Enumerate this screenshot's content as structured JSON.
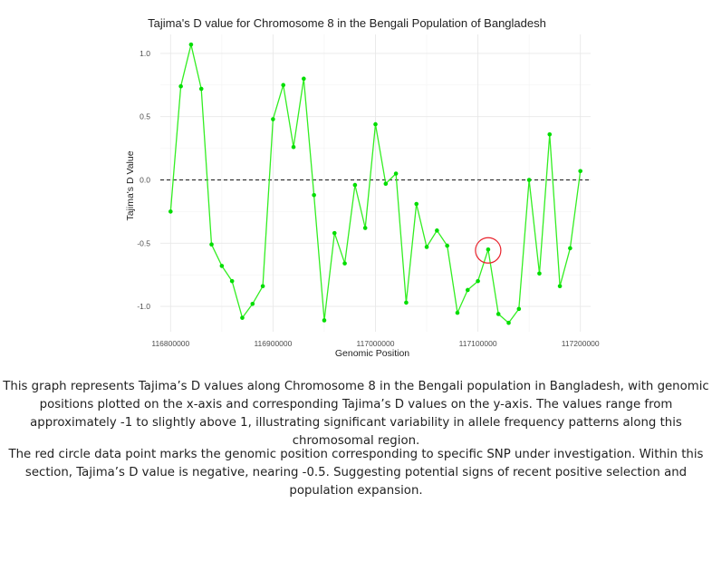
{
  "chart_data": {
    "type": "line",
    "title": "Tajima's D value for Chromosome 8 in the Bengali Population of Bangladesh",
    "xlabel": "Genomic Position",
    "ylabel": "Tajima's D Value",
    "xlim": [
      116790000,
      117210000
    ],
    "ylim": [
      -1.2,
      1.15
    ],
    "x_ticks": [
      116800000,
      116900000,
      117000000,
      117100000,
      117200000
    ],
    "x_tick_labels": [
      "116800000",
      "116900000",
      "117000000",
      "117100000",
      "117200000"
    ],
    "y_ticks": [
      1.0,
      0.5,
      0.0,
      -0.5,
      -1.0
    ],
    "y_tick_labels": [
      "1.0",
      "0.5",
      "0.0",
      "-0.5",
      "-1.0"
    ],
    "grid": true,
    "reference_line": {
      "y": 0,
      "style": "dashed"
    },
    "line_color": "#33ee22",
    "marker_color": "#00dd00",
    "highlight_color": "#e8202a",
    "series": [
      {
        "x": [
          116800000,
          116810000,
          116820000,
          116830000,
          116840000,
          116850000,
          116860000,
          116870000,
          116880000,
          116890000,
          116900000,
          116910000,
          116920000,
          116930000,
          116940000,
          116950000,
          116960000,
          116970000,
          116980000,
          116990000,
          117000000,
          117010000,
          117020000,
          117030000,
          117040000,
          117050000,
          117060000,
          117070000,
          117080000,
          117090000,
          117100000,
          117110000,
          117120000,
          117130000,
          117140000,
          117150000,
          117160000,
          117170000,
          117180000,
          117190000,
          117200000
        ],
        "values": [
          -0.25,
          0.74,
          1.07,
          0.72,
          -0.51,
          -0.68,
          -0.8,
          -1.09,
          -0.98,
          -0.84,
          0.48,
          0.75,
          0.26,
          0.8,
          -0.12,
          -1.11,
          -0.42,
          -0.66,
          -0.04,
          -0.38,
          0.44,
          -0.03,
          0.05,
          -0.97,
          -0.19,
          -0.53,
          -0.4,
          -0.52,
          -1.05,
          -0.87,
          -0.8,
          -0.55,
          -1.06,
          -1.13,
          -1.02,
          0.0,
          -0.74,
          0.36,
          -0.84,
          -0.54,
          0.07
        ]
      }
    ],
    "highlight_point": {
      "x": 117110000,
      "y": -0.55
    }
  },
  "caption": {
    "paragraph_1": "This graph represents Tajima’s D values along Chromosome 8 in the Bengali population in Bangladesh, with genomic positions plotted on the x-axis and corresponding Tajima’s D values on the y-axis. The values range from approximately -1 to slightly above 1, illustrating significant variability in allele frequency patterns along this chromosomal region.",
    "paragraph_2": "The red circle data point marks the genomic position corresponding to specific SNP under investigation. Within this section, Tajima’s D value is negative, nearing -0.5. Suggesting potential signs of recent positive selection and population expansion."
  }
}
